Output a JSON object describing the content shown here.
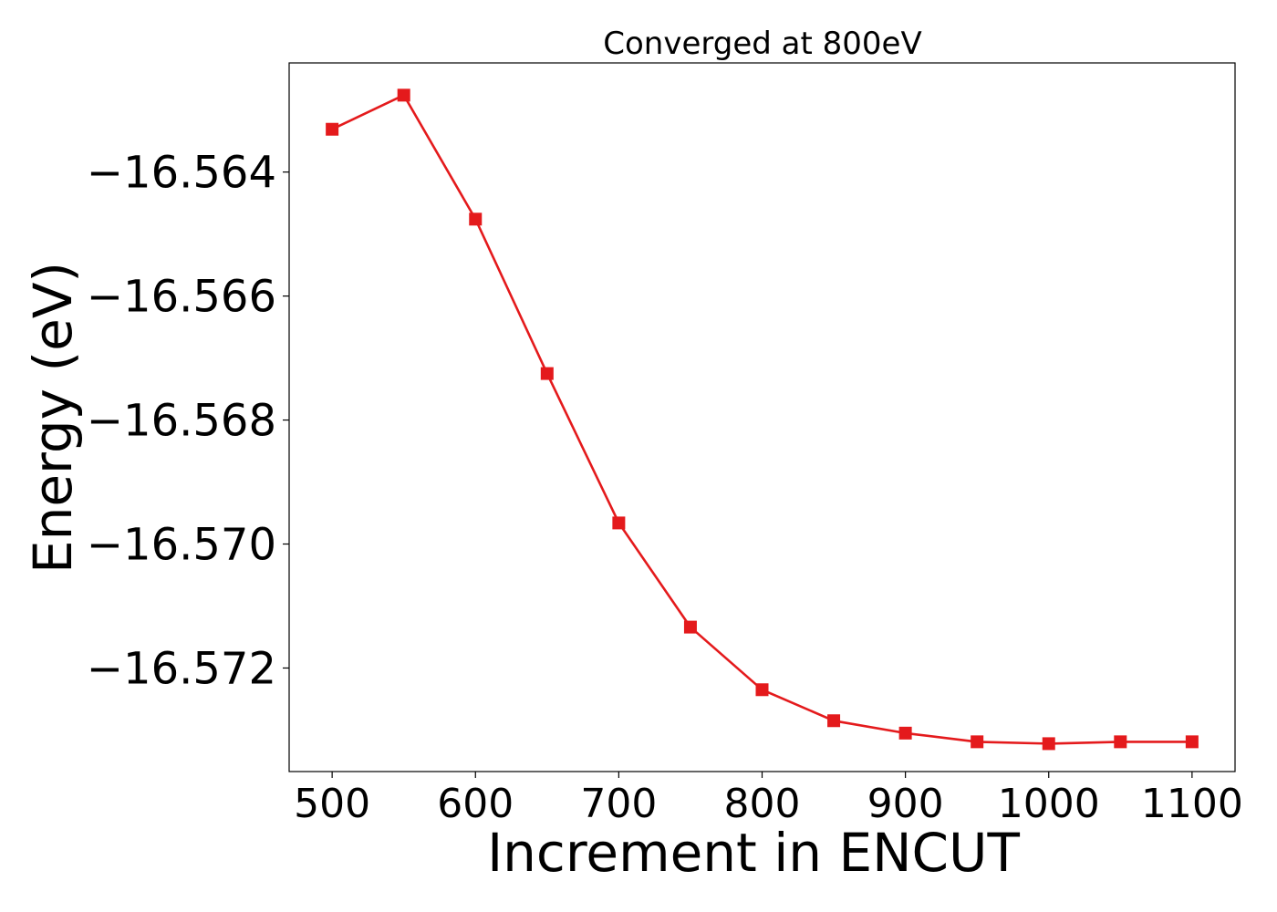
{
  "chart_data": {
    "type": "line",
    "title": "Converged at 800eV",
    "xlabel": "Increment in ENCUT",
    "ylabel": "Energy (eV)",
    "x": [
      500,
      550,
      600,
      650,
      700,
      750,
      800,
      850,
      900,
      950,
      1000,
      1050,
      1100
    ],
    "series": [
      {
        "values": [
          -16.56331,
          -16.56276,
          -16.56476,
          -16.56725,
          -16.56966,
          -16.57134,
          -16.57235,
          -16.57285,
          -16.57305,
          -16.57319,
          -16.57322,
          -16.57319,
          -16.57319
        ],
        "color": "#e41a1c",
        "marker": "square"
      }
    ],
    "xlim": [
      470,
      1130
    ],
    "ylim": [
      -16.57367,
      -16.56224
    ],
    "xticks": [
      500,
      600,
      700,
      800,
      900,
      1000,
      1100
    ],
    "xtick_labels": [
      "500",
      "600",
      "700",
      "800",
      "900",
      "1000",
      "1100"
    ],
    "yticks": [
      -16.564,
      -16.566,
      -16.568,
      -16.57,
      -16.572
    ],
    "ytick_labels": [
      "−16.564",
      "−16.566",
      "−16.568",
      "−16.570",
      "−16.572"
    ],
    "grid": false
  }
}
